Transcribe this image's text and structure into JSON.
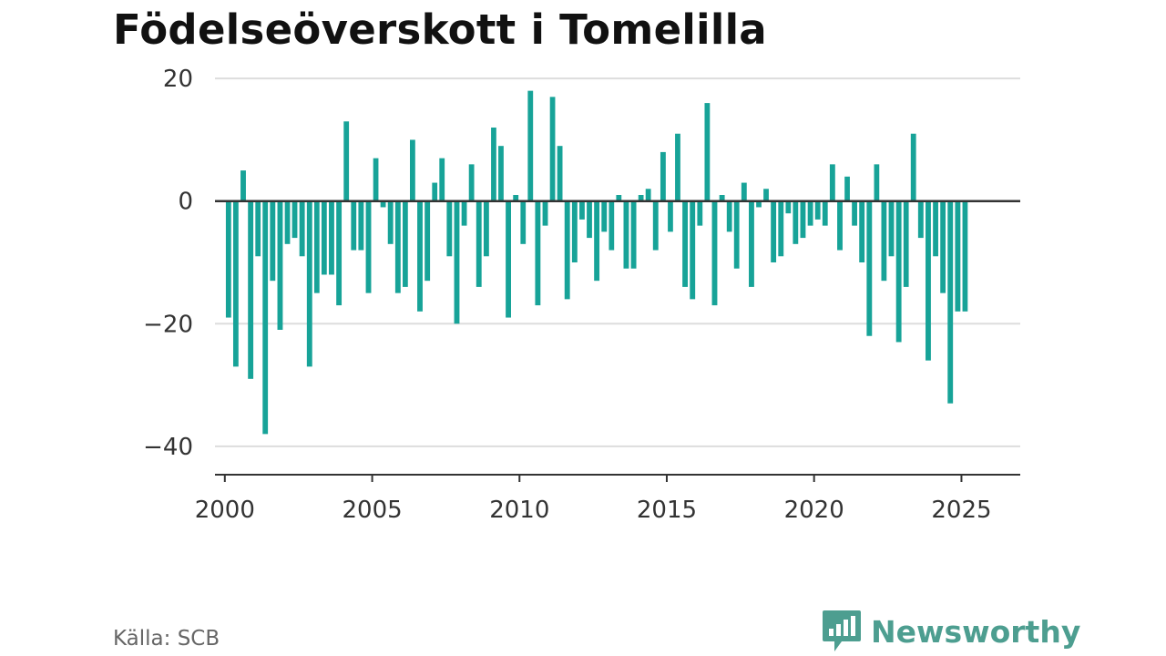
{
  "title": "Födelseöverskott i Tomelilla",
  "source": "Källa: SCB",
  "brand": {
    "name": "Newsworthy",
    "icon": "newsworthy-logo-icon"
  },
  "colors": {
    "bar": "#17a398",
    "zero_line": "#333333",
    "grid": "#dddddd",
    "brand": "#4d9e90"
  },
  "chart_data": {
    "type": "bar",
    "title": "Födelseöverskott i Tomelilla",
    "xlabel": "",
    "ylabel": "",
    "frequency": "quarterly",
    "start": "2000 Q1",
    "xlim": [
      "1999-09-01",
      "2026-12-31"
    ],
    "ylim": [
      -43,
      23
    ],
    "yticks": [
      -40,
      -20,
      0,
      20
    ],
    "ytick_labels": [
      "−40",
      "−20",
      "0",
      "20"
    ],
    "xticks": [
      2000,
      2005,
      2010,
      2015,
      2020,
      2025
    ],
    "grid": true,
    "legend": "none",
    "values": [
      -19,
      -27,
      5,
      -29,
      -9,
      -38,
      -13,
      -21,
      -7,
      -6,
      -9,
      -27,
      -15,
      -12,
      -12,
      -17,
      13,
      -8,
      -8,
      -15,
      7,
      -1,
      -7,
      -15,
      -14,
      10,
      -18,
      -13,
      3,
      7,
      -9,
      -20,
      -4,
      6,
      -14,
      -9,
      12,
      9,
      -19,
      1,
      -7,
      18,
      -17,
      -4,
      17,
      9,
      -16,
      -10,
      -3,
      -6,
      -13,
      -5,
      -8,
      1,
      -11,
      -11,
      1,
      2,
      -8,
      8,
      -5,
      11,
      -14,
      -16,
      -4,
      16,
      -17,
      1,
      -5,
      -11,
      3,
      -14,
      -1,
      2,
      -10,
      -9,
      -2,
      -7,
      -6,
      -4,
      -3,
      -4,
      6,
      -8,
      4,
      -4,
      -10,
      -22,
      6,
      -13,
      -9,
      -23,
      -14,
      11,
      -6,
      -26,
      -9,
      -15,
      -33,
      -18,
      -18
    ]
  }
}
